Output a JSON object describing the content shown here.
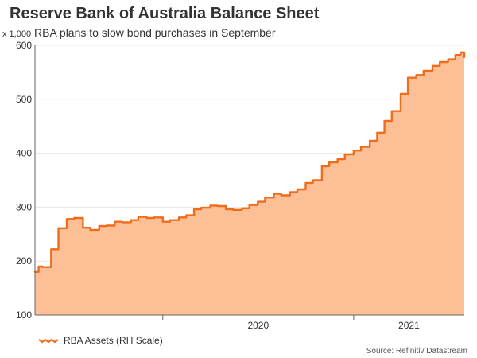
{
  "header": {
    "title": "Reserve Bank of Australia Balance Sheet",
    "subtitle": "RBA plans to slow bond purchases in September"
  },
  "axis": {
    "unit_label": "x 1,000"
  },
  "legend": {
    "label": "RBA Assets (RH Scale)"
  },
  "footer": {
    "source": "Source: Refinitiv Datastream"
  },
  "colors": {
    "line": "#ef6c1a",
    "fill": "#fdbf95",
    "grid": "#e8e8e8",
    "axis": "#666666"
  },
  "chart_data": {
    "type": "area",
    "title": "Reserve Bank of Australia Balance Sheet",
    "subtitle": "RBA plans to slow bond purchases in September",
    "ylabel": "x 1,000",
    "xlabel": "",
    "ylim": [
      100,
      600
    ],
    "yticks": [
      100,
      200,
      300,
      400,
      500,
      600
    ],
    "xlim": [
      "2019-05-01",
      "2021-08-01"
    ],
    "xtick_labels": [
      "2020",
      "2021"
    ],
    "grid": true,
    "legend_position": "bottom-left",
    "series": [
      {
        "name": "RBA Assets (RH Scale)",
        "x": [
          "2019-05-01",
          "2019-05-08",
          "2019-05-15",
          "2019-06-01",
          "2019-06-15",
          "2019-07-01",
          "2019-07-15",
          "2019-08-01",
          "2019-08-15",
          "2019-09-01",
          "2019-09-15",
          "2019-10-01",
          "2019-10-15",
          "2019-11-01",
          "2019-11-15",
          "2019-12-01",
          "2019-12-15",
          "2020-01-01",
          "2020-01-15",
          "2020-02-01",
          "2020-02-15",
          "2020-03-01",
          "2020-03-15",
          "2020-04-01",
          "2020-04-15",
          "2020-05-01",
          "2020-05-15",
          "2020-06-01",
          "2020-06-15",
          "2020-07-01",
          "2020-07-15",
          "2020-08-01",
          "2020-08-15",
          "2020-09-01",
          "2020-09-15",
          "2020-10-01",
          "2020-10-15",
          "2020-11-01",
          "2020-11-15",
          "2020-12-01",
          "2020-12-15",
          "2021-01-01",
          "2021-01-15",
          "2021-02-01",
          "2021-02-15",
          "2021-03-01",
          "2021-03-15",
          "2021-04-01",
          "2021-04-15",
          "2021-05-01",
          "2021-05-15",
          "2021-06-01",
          "2021-06-15",
          "2021-07-01",
          "2021-07-15",
          "2021-07-25",
          "2021-08-01"
        ],
        "values": [
          180,
          190,
          189,
          222,
          261,
          278,
          280,
          262,
          258,
          265,
          266,
          273,
          272,
          276,
          282,
          280,
          281,
          273,
          276,
          281,
          285,
          296,
          299,
          303,
          302,
          296,
          295,
          298,
          304,
          310,
          318,
          325,
          322,
          328,
          333,
          345,
          350,
          376,
          383,
          389,
          398,
          405,
          412,
          423,
          438,
          460,
          478,
          510,
          540,
          545,
          553,
          562,
          569,
          574,
          582,
          587,
          578
        ]
      }
    ]
  }
}
